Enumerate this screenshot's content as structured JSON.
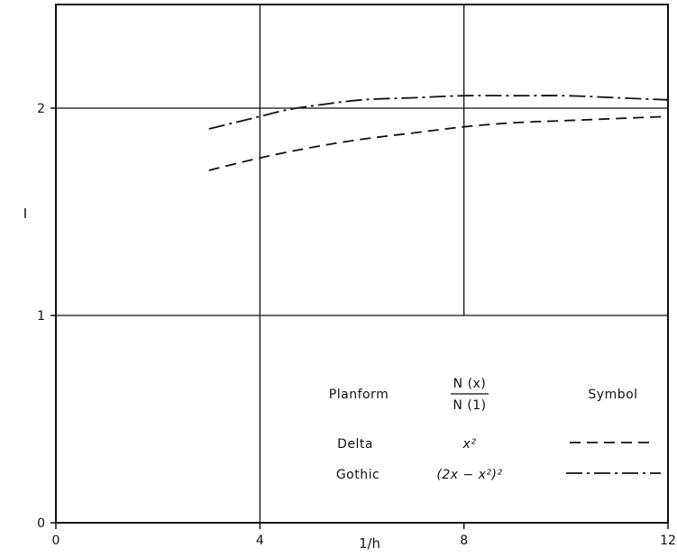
{
  "chart_data": {
    "type": "line",
    "title": "",
    "xlabel": "1/h",
    "ylabel": "I",
    "xlim": [
      0,
      12
    ],
    "ylim": [
      0,
      2.5
    ],
    "xticks": [
      0,
      4,
      8,
      12
    ],
    "xtick_labels": [
      "0",
      "4",
      "8",
      "12"
    ],
    "yticks": [
      0,
      1,
      2
    ],
    "ytick_labels": [
      "0",
      "1",
      "2"
    ],
    "grid": true,
    "series": [
      {
        "name": "Delta",
        "style": "dashed",
        "x": [
          3.0,
          4.0,
          5.0,
          6.0,
          7.0,
          8.0,
          9.0,
          10.0,
          11.0,
          12.0
        ],
        "y": [
          1.7,
          1.76,
          1.81,
          1.85,
          1.88,
          1.91,
          1.93,
          1.94,
          1.95,
          1.96
        ]
      },
      {
        "name": "Gothic",
        "style": "dashdot",
        "x": [
          3.0,
          3.5,
          4.0,
          4.5,
          5.0,
          6.0,
          7.0,
          8.0,
          9.0,
          10.0,
          11.0,
          12.0
        ],
        "y": [
          1.9,
          1.93,
          1.96,
          1.99,
          2.01,
          2.04,
          2.05,
          2.06,
          2.06,
          2.06,
          2.05,
          2.04
        ]
      }
    ],
    "legend": {
      "placement": "bottom-right",
      "headers": {
        "planform": "Planform",
        "ratio_num": "N (x)",
        "ratio_den": "N (1)",
        "symbol": "Symbol"
      },
      "rows": [
        {
          "planform": "Delta",
          "formula": "x²",
          "style": "dashed"
        },
        {
          "planform": "Gothic",
          "formula": "(2x − x²)²",
          "style": "dashdot"
        }
      ]
    }
  }
}
